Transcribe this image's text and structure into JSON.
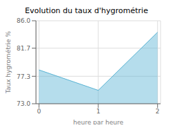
{
  "chart_data": {
    "type": "area",
    "title": "Evolution du taux d'hygrométrie",
    "xlabel": "heure par heure",
    "ylabel": "Taux hygrométrie %",
    "x": [
      0,
      1,
      2
    ],
    "series": [
      {
        "name": "Taux hygrométrie %",
        "color": "#5ab4d4",
        "values": [
          78.3,
          75.1,
          84.2
        ]
      }
    ],
    "xlim": [
      -0.05,
      2.05
    ],
    "xticks": [
      0,
      1,
      2
    ],
    "ylim": [
      73,
      86
    ],
    "yticks": [
      {
        "value": 73,
        "label": "73.0"
      },
      77.3,
      81.7,
      {
        "value": 86,
        "label": "86.0"
      }
    ],
    "grid": true
  }
}
